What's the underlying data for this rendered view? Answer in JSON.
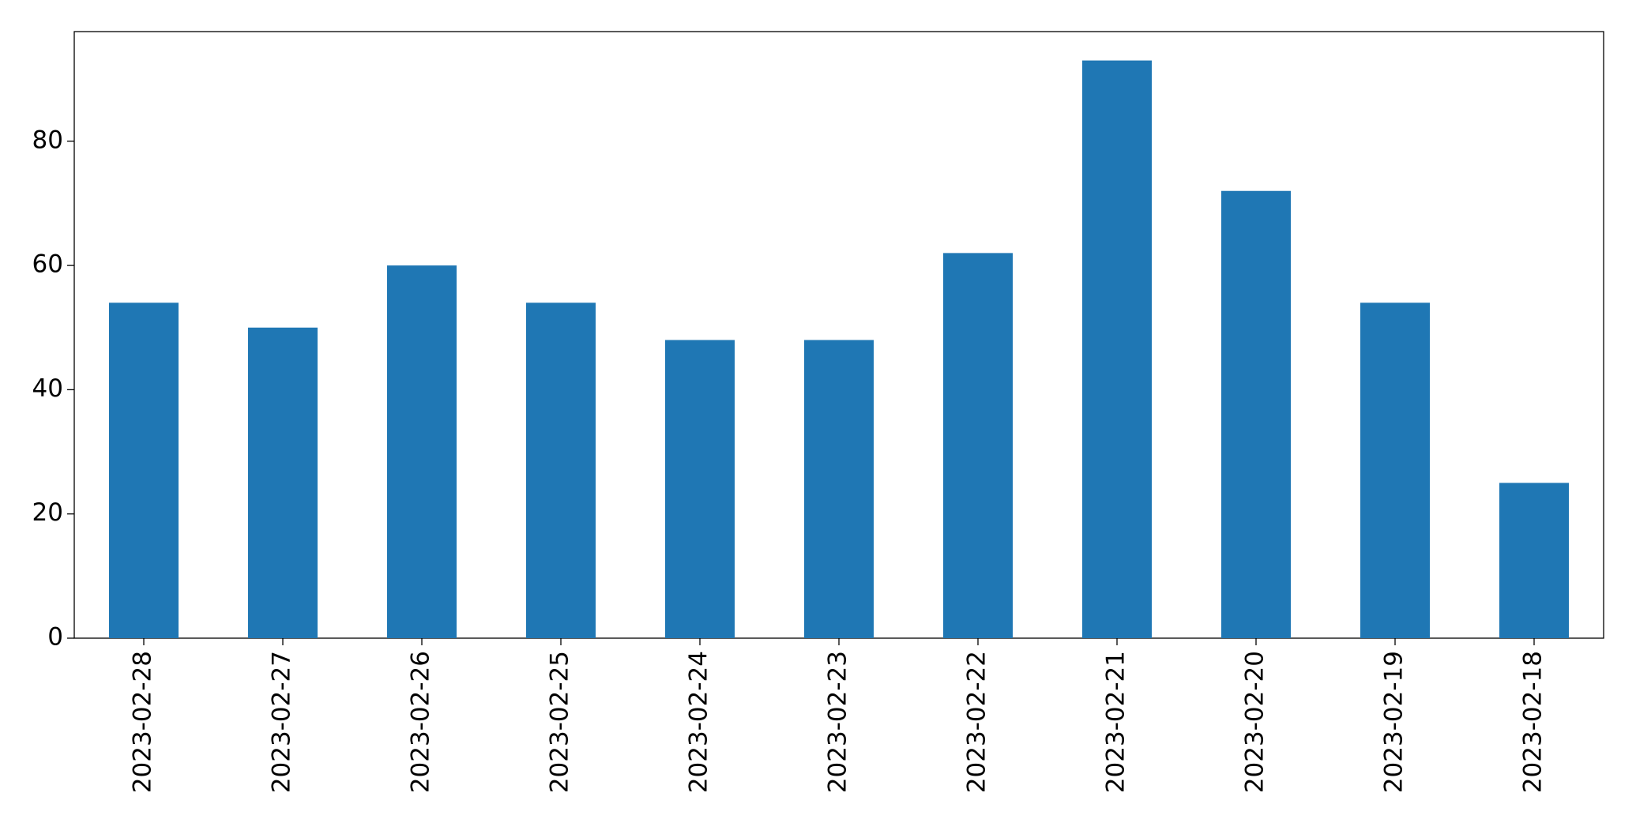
{
  "chart_data": {
    "type": "bar",
    "categories": [
      "2023-02-28",
      "2023-02-27",
      "2023-02-26",
      "2023-02-25",
      "2023-02-24",
      "2023-02-23",
      "2023-02-22",
      "2023-02-21",
      "2023-02-20",
      "2023-02-19",
      "2023-02-18"
    ],
    "values": [
      54,
      50,
      60,
      54,
      48,
      48,
      62,
      93,
      72,
      54,
      25
    ],
    "color": "#1f77b4",
    "ylim": [
      0,
      97.65
    ],
    "yticks": [
      0,
      20,
      40,
      60,
      80
    ],
    "grid": false
  }
}
